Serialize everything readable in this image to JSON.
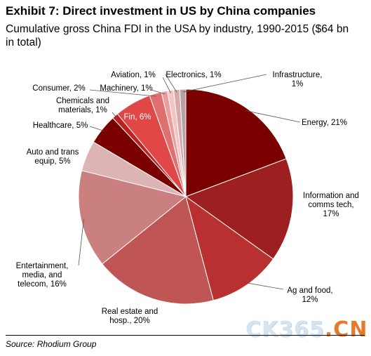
{
  "header": {
    "title": "Exhibit 7: Direct investment in US by China companies",
    "subtitle": "Cumulative gross China FDI in the USA by industry, 1990-2015 ($64 bn in total)"
  },
  "footer": {
    "source": "Source: Rhodium Group"
  },
  "watermark": {
    "text_main": "CK365",
    "text_dot": ".",
    "text_cn": "CN"
  },
  "chart_data": {
    "type": "pie",
    "title": "Exhibit 7: Direct investment in US by China companies",
    "subtitle": "Cumulative gross China FDI in the USA by industry, 1990-2015 ($64 bn in total)",
    "unit": "%",
    "legend": "none",
    "slices": [
      {
        "label": "Energy",
        "value": 21,
        "display": "Energy, 21%",
        "color": "#7a0000"
      },
      {
        "label": "Information and comms tech",
        "value": 17,
        "display": "Information and comms tech, 17%",
        "color": "#9e1f1f"
      },
      {
        "label": "Ag and food",
        "value": 12,
        "display": "Ag and food, 12%",
        "color": "#b93030"
      },
      {
        "label": "Real estate and hosp.",
        "value": 20,
        "display": "Real estate and hosp., 20%",
        "color": "#c05556"
      },
      {
        "label": "Entertainment, media, and telecom",
        "value": 16,
        "display": "Entertainment, media, and telecom, 16%",
        "color": "#c9807f"
      },
      {
        "label": "Auto and trans equip",
        "value": 5,
        "display": "Auto and trans equip, 5%",
        "color": "#dcb4b4"
      },
      {
        "label": "Healthcare",
        "value": 5,
        "display": "Healthcare, 5%",
        "color": "#7a0000"
      },
      {
        "label": "Chemicals and materials",
        "value": 1,
        "display": "Chemicals and materials, 1%",
        "color": "#c21f1f"
      },
      {
        "label": "Fin",
        "value": 6,
        "display": "Fin, 6%",
        "color": "#e04848"
      },
      {
        "label": "Consumer",
        "value": 2,
        "display": "Consumer, 2%",
        "color": "#e07070"
      },
      {
        "label": "Machinery",
        "value": 1,
        "display": "Machinery, 1%",
        "color": "#ee9d9d"
      },
      {
        "label": "Aviation",
        "value": 1,
        "display": "Aviation, 1%",
        "color": "#f4c4c4"
      },
      {
        "label": "Electronics",
        "value": 1,
        "display": "Electronics, 1%",
        "color": "#d8a9aa"
      },
      {
        "label": "Infrastructure",
        "value": 1,
        "display": "Infrastructure, 1%",
        "color": "#b9a2a3"
      }
    ]
  }
}
